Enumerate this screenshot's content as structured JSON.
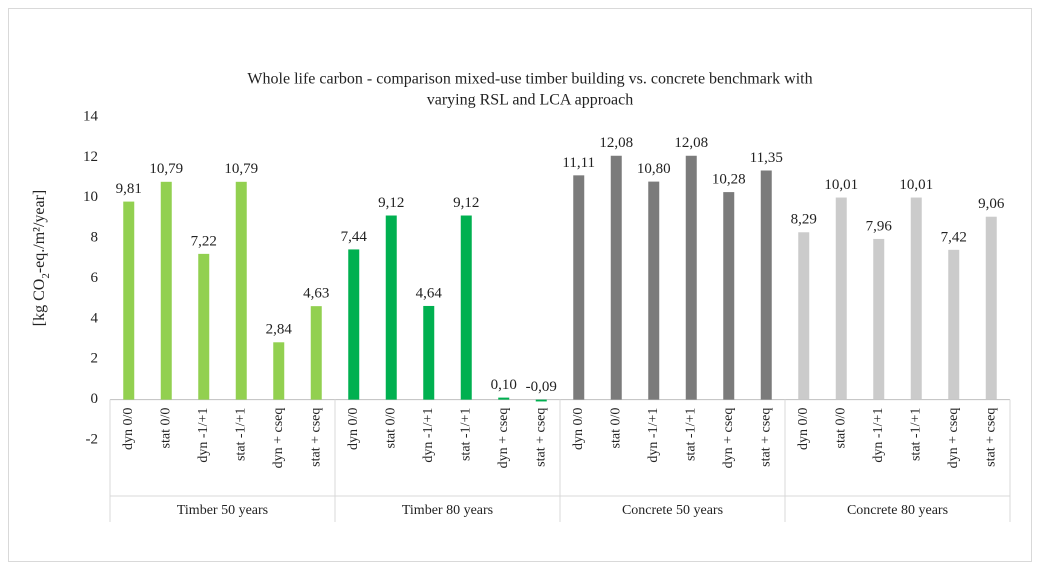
{
  "chart_data": {
    "type": "bar",
    "title": [
      "Whole life carbon - comparison mixed-use timber building vs. concrete benchmark with",
      "varying RSL and LCA approach"
    ],
    "y_label": [
      "[kg CO",
      "2",
      "-eq./m²/year]"
    ],
    "ylim": [
      -2,
      14
    ],
    "yticks": [
      -2,
      0,
      2,
      4,
      6,
      8,
      10,
      12,
      14
    ],
    "grid": false,
    "groups": [
      {
        "label": "Timber 50 years",
        "color": "#92d050",
        "categories": [
          "dyn 0/0",
          "stat 0/0",
          "dyn -1/+1",
          "stat -1/+1",
          "dyn + cseq",
          "stat + cseq"
        ],
        "values": [
          9.81,
          10.79,
          7.22,
          10.79,
          2.84,
          4.63
        ],
        "value_labels": [
          "9,81",
          "10,79",
          "7,22",
          "10,79",
          "2,84",
          "4,63"
        ]
      },
      {
        "label": "Timber 80 years",
        "color": "#00b050",
        "categories": [
          "dyn 0/0",
          "stat 0/0",
          "dyn -1/+1",
          "stat -1/+1",
          "dyn + cseq",
          "stat + cseq"
        ],
        "values": [
          7.44,
          9.12,
          4.64,
          9.12,
          0.1,
          -0.09
        ],
        "value_labels": [
          "7,44",
          "9,12",
          "4,64",
          "9,12",
          "0,10",
          "-0,09"
        ]
      },
      {
        "label": "Concrete 50 years",
        "color": "#7b7b7b",
        "categories": [
          "dyn 0/0",
          "stat 0/0",
          "dyn -1/+1",
          "stat -1/+1",
          "dyn + cseq",
          "stat + cseq"
        ],
        "values": [
          11.11,
          12.08,
          10.8,
          12.08,
          10.28,
          11.35
        ],
        "value_labels": [
          "11,11",
          "12,08",
          "10,80",
          "12,08",
          "10,28",
          "11,35"
        ]
      },
      {
        "label": "Concrete 80 years",
        "color": "#cbcbcb",
        "categories": [
          "dyn 0/0",
          "stat 0/0",
          "dyn -1/+1",
          "stat -1/+1",
          "dyn + cseq",
          "stat + cseq"
        ],
        "values": [
          8.29,
          10.01,
          7.96,
          10.01,
          7.42,
          9.06
        ],
        "value_labels": [
          "8,29",
          "10,01",
          "7,96",
          "10,01",
          "7,42",
          "9,06"
        ]
      }
    ]
  }
}
